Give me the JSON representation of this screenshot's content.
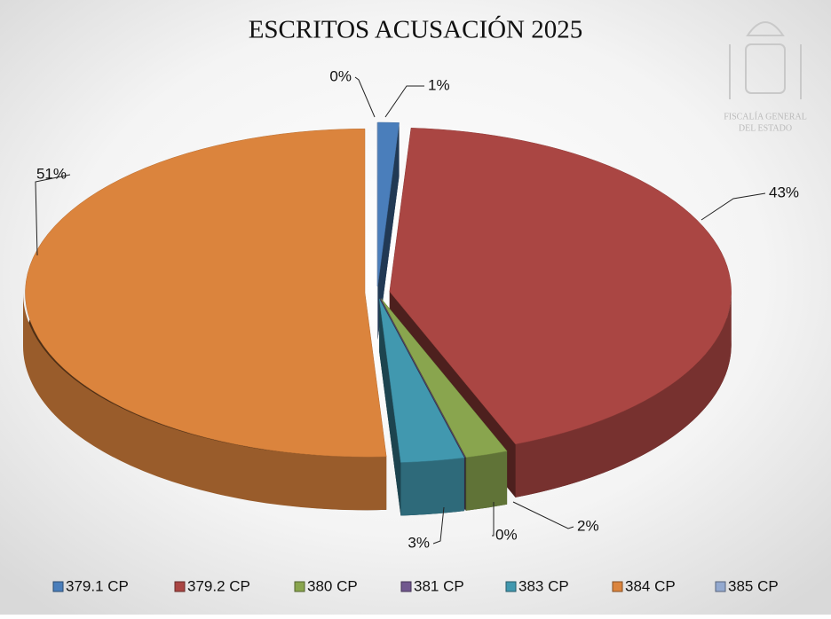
{
  "chart_data": {
    "type": "pie",
    "title": "ESCRITOS ACUSACIÓN 2025",
    "categories": [
      "379.1 CP",
      "379.2 CP",
      "380 CP",
      "381 CP",
      "383 CP",
      "384 CP",
      "385 CP"
    ],
    "values": [
      1,
      43,
      2,
      0,
      3,
      51,
      0
    ],
    "value_labels": [
      "1%",
      "43%",
      "2%",
      "0%",
      "3%",
      "51%",
      "0%"
    ],
    "colors": [
      "#4a7ebb",
      "#aa4643",
      "#89a54e",
      "#71588f",
      "#4198af",
      "#db843d",
      "#93a9cf"
    ],
    "legend": "bottom"
  },
  "logo_text": [
    "FISCALÍA GENERAL",
    "DEL ESTADO"
  ]
}
